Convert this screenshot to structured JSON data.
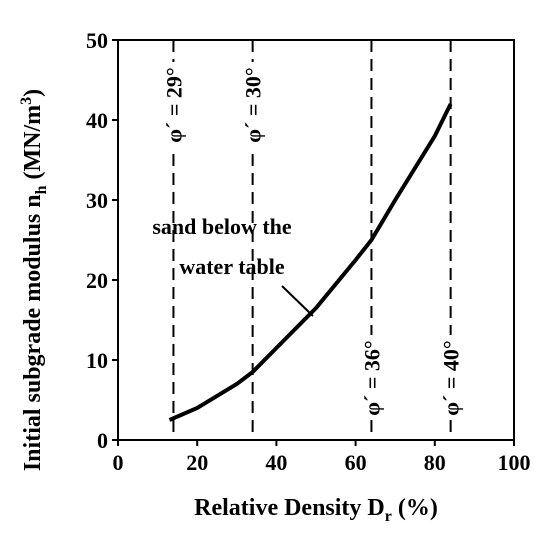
{
  "chart_data": {
    "type": "line",
    "y_label_parts": [
      "Initial subgrade modulus n",
      "h",
      " (MN/m",
      "3",
      ")"
    ],
    "x_label_parts": [
      "Relative Density D",
      "r",
      " (%)"
    ],
    "x": [
      13,
      20,
      30,
      34,
      40,
      50,
      60,
      64,
      70,
      80,
      84
    ],
    "series": [
      {
        "name": "sand below the water table",
        "color": "#000000",
        "values": [
          2.5,
          4,
          7,
          8.5,
          11.5,
          16.5,
          22.5,
          25,
          30,
          38,
          42
        ]
      }
    ],
    "reference_lines": [
      {
        "x": 14,
        "label": "φ´ = 29°"
      },
      {
        "x": 34,
        "label": "φ´ = 30°"
      },
      {
        "x": 64,
        "label": "φ´ = 36°"
      },
      {
        "x": 84,
        "label": "φ´ = 40°"
      }
    ],
    "xlim": [
      0,
      100
    ],
    "xticks": [
      0,
      20,
      40,
      60,
      80,
      100
    ],
    "ylim": [
      0,
      50
    ],
    "yticks": [
      0,
      10,
      20,
      30,
      40,
      50
    ]
  }
}
